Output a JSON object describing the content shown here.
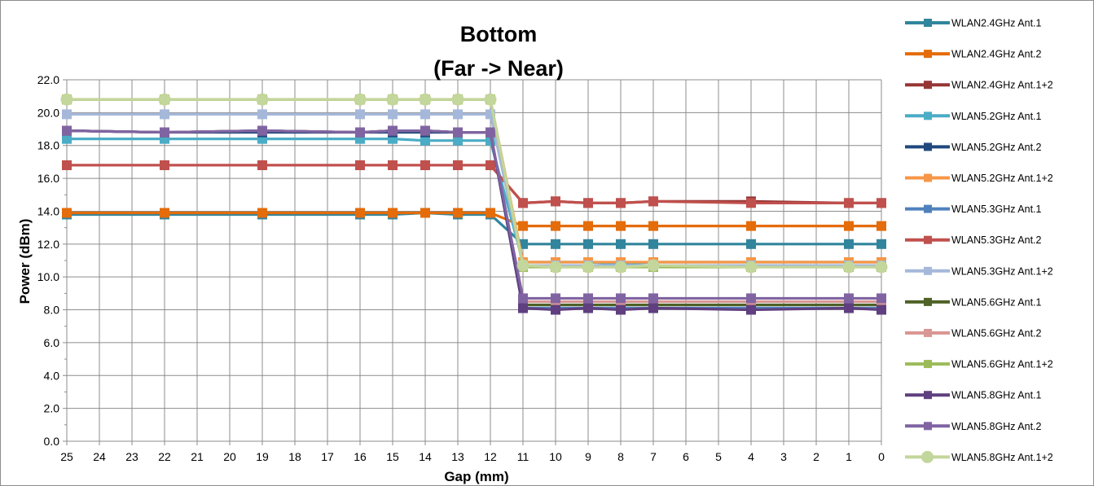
{
  "chart_data": {
    "type": "line",
    "title": "Bottom",
    "subtitle": "(Far -> Near)",
    "xlabel": "Gap (mm)",
    "ylabel": "Power (dBm)",
    "ylim": [
      0,
      22
    ],
    "y_ticks": [
      "0.0",
      "2.0",
      "4.0",
      "6.0",
      "8.0",
      "10.0",
      "12.0",
      "14.0",
      "16.0",
      "18.0",
      "20.0",
      "22.0"
    ],
    "x_ticks": [
      "25",
      "24",
      "23",
      "22",
      "21",
      "20",
      "19",
      "18",
      "17",
      "16",
      "15",
      "14",
      "13",
      "12",
      "11",
      "10",
      "9",
      "8",
      "7",
      "6",
      "5",
      "4",
      "3",
      "2",
      "1",
      "0"
    ],
    "x_reversed": true,
    "grid": true,
    "legend_position": "right",
    "x": [
      25,
      22,
      19,
      16,
      15,
      14,
      13,
      12,
      11,
      10,
      9,
      8,
      7,
      4,
      1,
      0
    ],
    "series": [
      {
        "name": "WLAN2.4GHz Ant.1",
        "color": "#31859c",
        "marker": "square",
        "values": [
          13.8,
          13.8,
          13.8,
          13.8,
          13.8,
          13.9,
          13.8,
          13.8,
          12.0,
          12.0,
          12.0,
          12.0,
          12.0,
          12.0,
          12.0,
          12.0
        ]
      },
      {
        "name": "WLAN2.4GHz Ant.2",
        "color": "#e46c0a",
        "marker": "square",
        "values": [
          13.9,
          13.9,
          13.9,
          13.9,
          13.9,
          13.9,
          13.9,
          13.9,
          13.1,
          13.1,
          13.1,
          13.1,
          13.1,
          13.1,
          13.1,
          13.1
        ]
      },
      {
        "name": "WLAN2.4GHz Ant.1+2",
        "color": "#953735",
        "marker": "square",
        "values": [
          16.8,
          16.8,
          16.8,
          16.8,
          16.8,
          16.8,
          16.8,
          16.8,
          14.5,
          14.6,
          14.5,
          14.5,
          14.6,
          14.6,
          14.5,
          14.5
        ]
      },
      {
        "name": "WLAN5.2GHz Ant.1",
        "color": "#4bacc6",
        "marker": "square",
        "values": [
          18.4,
          18.4,
          18.4,
          18.4,
          18.4,
          18.3,
          18.3,
          18.3,
          10.9,
          10.9,
          10.9,
          10.8,
          10.9,
          10.9,
          10.9,
          10.9
        ]
      },
      {
        "name": "WLAN5.2GHz Ant.2",
        "color": "#1f497d",
        "marker": "square",
        "values": [
          18.9,
          18.8,
          18.8,
          18.8,
          18.8,
          18.8,
          18.8,
          18.8,
          8.1,
          8.1,
          8.1,
          8.1,
          8.1,
          8.1,
          8.1,
          8.1
        ]
      },
      {
        "name": "WLAN5.2GHz Ant.1+2",
        "color": "#f79646",
        "marker": "square",
        "values": [
          20.8,
          20.8,
          20.8,
          20.8,
          20.8,
          20.8,
          20.8,
          20.8,
          10.9,
          10.9,
          10.9,
          10.9,
          10.9,
          10.9,
          10.9,
          10.9
        ]
      },
      {
        "name": "WLAN5.3GHz Ant.1",
        "color": "#4f81bd",
        "marker": "square",
        "values": [
          18.9,
          18.8,
          18.9,
          18.8,
          18.9,
          18.9,
          18.8,
          18.8,
          8.1,
          8.1,
          8.1,
          8.1,
          8.1,
          8.1,
          8.1,
          8.1
        ]
      },
      {
        "name": "WLAN5.3GHz Ant.2",
        "color": "#c0504d",
        "marker": "square",
        "values": [
          16.8,
          16.8,
          16.8,
          16.8,
          16.8,
          16.8,
          16.8,
          16.8,
          14.5,
          14.6,
          14.5,
          14.5,
          14.6,
          14.5,
          14.5,
          14.5
        ]
      },
      {
        "name": "WLAN5.3GHz Ant.1+2",
        "color": "#a5b8da",
        "marker": "square",
        "values": [
          19.9,
          19.9,
          19.9,
          19.9,
          19.9,
          19.9,
          19.9,
          19.9,
          10.7,
          10.7,
          10.7,
          10.7,
          10.7,
          10.7,
          10.7,
          10.7
        ]
      },
      {
        "name": "WLAN5.6GHz Ant.1",
        "color": "#4f6228",
        "marker": "square",
        "values": [
          18.9,
          18.8,
          18.9,
          18.8,
          18.9,
          18.9,
          18.8,
          18.8,
          8.3,
          8.3,
          8.3,
          8.3,
          8.3,
          8.3,
          8.3,
          8.3
        ]
      },
      {
        "name": "WLAN5.6GHz Ant.2",
        "color": "#d99694",
        "marker": "square",
        "values": [
          18.9,
          18.8,
          18.9,
          18.8,
          18.9,
          18.9,
          18.8,
          18.8,
          8.5,
          8.5,
          8.5,
          8.5,
          8.5,
          8.5,
          8.5,
          8.5
        ]
      },
      {
        "name": "WLAN5.6GHz Ant.1+2",
        "color": "#9bbb59",
        "marker": "square",
        "values": [
          20.8,
          20.8,
          20.8,
          20.8,
          20.8,
          20.8,
          20.8,
          20.8,
          10.6,
          10.6,
          10.6,
          10.6,
          10.6,
          10.6,
          10.6,
          10.6
        ]
      },
      {
        "name": "WLAN5.8GHz Ant.1",
        "color": "#5f3f7f",
        "marker": "square",
        "values": [
          18.9,
          18.8,
          18.9,
          18.8,
          18.9,
          18.9,
          18.8,
          18.8,
          8.1,
          8.0,
          8.1,
          8.0,
          8.1,
          8.0,
          8.1,
          8.0
        ]
      },
      {
        "name": "WLAN5.8GHz Ant.2",
        "color": "#8064a2",
        "marker": "square",
        "values": [
          18.9,
          18.8,
          18.9,
          18.8,
          18.9,
          18.9,
          18.8,
          18.8,
          8.7,
          8.7,
          8.7,
          8.7,
          8.7,
          8.7,
          8.7,
          8.7
        ]
      },
      {
        "name": "WLAN5.8GHz Ant.1+2",
        "color": "#c3d69b",
        "marker": "circle",
        "values": [
          20.8,
          20.8,
          20.8,
          20.8,
          20.8,
          20.8,
          20.8,
          20.8,
          10.7,
          10.6,
          10.6,
          10.6,
          10.7,
          10.6,
          10.6,
          10.6
        ]
      }
    ]
  }
}
